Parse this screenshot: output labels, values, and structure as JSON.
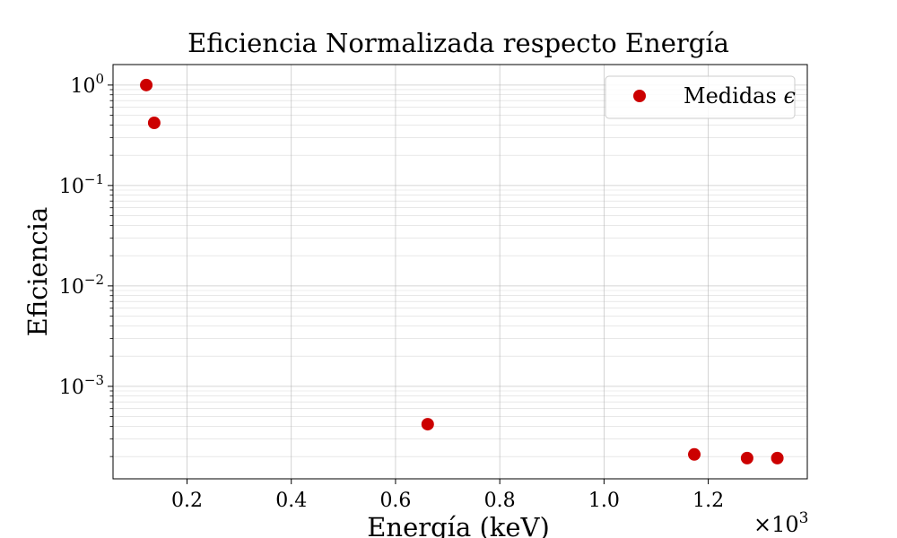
{
  "chart_data": {
    "type": "scatter",
    "title": "Eficiencia Normalizada respecto Energía",
    "xlabel": "Energía (keV)",
    "ylabel": "Eficiencia",
    "x_scale_label": "×10",
    "x_scale_exp": "3",
    "y_scale": "log",
    "xlim": [
      0.058,
      1.39
    ],
    "ylim": [
      0.00012,
      1.6
    ],
    "grid": true,
    "legend_position": "top-right",
    "x_ticks": [
      {
        "value": 0.2,
        "label": "0.2"
      },
      {
        "value": 0.4,
        "label": "0.4"
      },
      {
        "value": 0.6,
        "label": "0.6"
      },
      {
        "value": 0.8,
        "label": "0.8"
      },
      {
        "value": 1.0,
        "label": "1.0"
      },
      {
        "value": 1.2,
        "label": "1.2"
      }
    ],
    "y_ticks": [
      {
        "value": 1,
        "base": "10",
        "exp": "0"
      },
      {
        "value": 0.1,
        "base": "10",
        "exp": "−1"
      },
      {
        "value": 0.01,
        "base": "10",
        "exp": "−2"
      },
      {
        "value": 0.001,
        "base": "10",
        "exp": "−3"
      }
    ],
    "series": [
      {
        "name": "Medidas",
        "name_symbol": "ϵ",
        "color": "#cc0000",
        "x": [
          0.1218,
          0.137,
          0.6617,
          1.1732,
          1.2745,
          1.3325
        ],
        "y": [
          1.0,
          0.42,
          0.00042,
          0.00021,
          0.000193,
          0.000193
        ]
      }
    ]
  }
}
